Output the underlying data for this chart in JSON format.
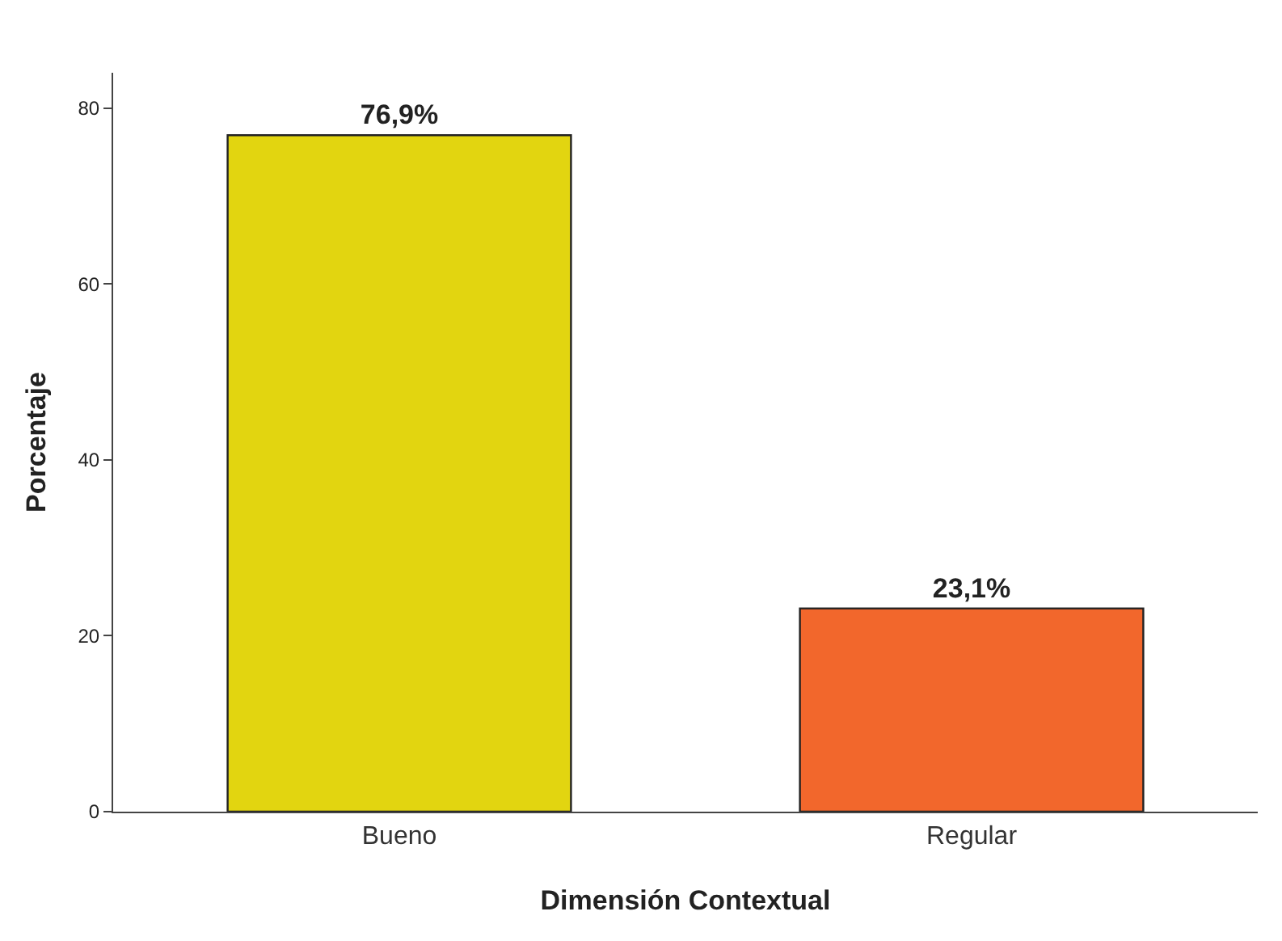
{
  "chart_data": {
    "type": "bar",
    "xlabel": "Dimensión Contextual",
    "ylabel": "Porcentaje",
    "categories": [
      "Bueno",
      "Regular"
    ],
    "values": [
      76.9,
      23.1
    ],
    "value_labels": [
      "76,9%",
      "23,1%"
    ],
    "colors": [
      "#e2d510",
      "#f2672c"
    ],
    "ylim": [
      0,
      84
    ],
    "yticks": [
      0,
      20,
      40,
      60,
      80
    ],
    "grid": false
  }
}
